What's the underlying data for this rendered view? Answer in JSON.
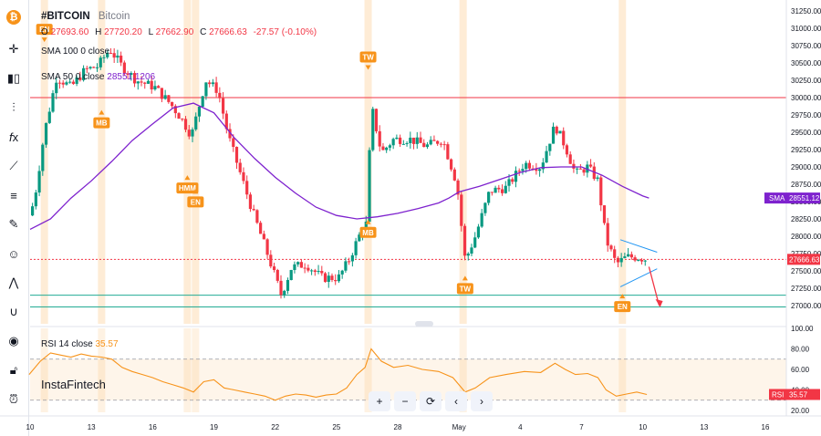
{
  "header": {
    "symbol": "#BITCOIN",
    "name": "Bitcoin",
    "ohlc": {
      "o_label": "O",
      "o": "27693.60",
      "h_label": "H",
      "h": "27720.20",
      "l_label": "L",
      "l": "27662.90",
      "c_label": "C",
      "c": "27666.63",
      "change": "-27.57 (-0.10%)"
    },
    "sma100": "SMA 100 0 close",
    "sma50_label": "SMA 50 0 close",
    "sma50_value": "28551.1206"
  },
  "rsi_legend": {
    "label": "RSI 14 close",
    "value": "35.57"
  },
  "watermark": "InstaFintech",
  "badges": {
    "price": "27666.63",
    "sma_label": "SMA",
    "sma": "28551.12",
    "rsi_label": "RSI",
    "rsi": "35.57"
  },
  "annotations": [
    "EN",
    "MB",
    "HMM",
    "EN",
    "TW",
    "MB",
    "TW",
    "EN"
  ],
  "colors": {
    "up": "#089981",
    "down": "#f23645",
    "sma": "#7e22ce",
    "rsi": "#f7931a",
    "marker": "#f7931a",
    "bitcoin": "#f7931a",
    "resistance": "#f23645",
    "support": "#22ab94",
    "triangle": "#2196f3"
  },
  "toolbar_icons": [
    "bitcoin-icon",
    "crosshair-icon",
    "candles-icon",
    "indicators-icon",
    "formula-icon",
    "trendline-icon",
    "fib-icon",
    "brush-icon",
    "emoji-icon",
    "measure-icon",
    "magnet-icon",
    "eye-icon",
    "lock-icon",
    "alert-icon"
  ],
  "pane_controls": [
    "+",
    "−",
    "⟳",
    "‹",
    "›"
  ],
  "chart_data": {
    "type": "candlestick",
    "price_axis": {
      "ticks": [
        31250,
        31000,
        30750,
        30500,
        30250,
        30000,
        29750,
        29500,
        29250,
        29000,
        28750,
        28500,
        28250,
        28000,
        27750,
        27500,
        27250,
        27000
      ],
      "labels": [
        "31250.00",
        "31000.00",
        "30750.00",
        "30500.00",
        "30250.00",
        "30000.00",
        "29750.00",
        "29500.00",
        "29250.00",
        "29000.00",
        "28750.00",
        "28500.00",
        "28250.00",
        "28000.00",
        "27750.00",
        "27500.00",
        "27250.00",
        "27000.00"
      ]
    },
    "rsi_axis": {
      "ticks": [
        100,
        80,
        60,
        40,
        20
      ],
      "labels": [
        "100.00",
        "80.00",
        "60.00",
        "40.00",
        "20.00"
      ]
    },
    "x_ticks": [
      {
        "t": 10,
        "label": "10"
      },
      {
        "t": 13,
        "label": "13"
      },
      {
        "t": 16,
        "label": "16"
      },
      {
        "t": 19,
        "label": "19"
      },
      {
        "t": 22,
        "label": "22"
      },
      {
        "t": 25,
        "label": "25"
      },
      {
        "t": 28,
        "label": "28"
      },
      {
        "t": 31,
        "label": "May"
      },
      {
        "t": 34,
        "label": "4"
      },
      {
        "t": 37,
        "label": "7"
      },
      {
        "t": 40,
        "label": "10"
      },
      {
        "t": 43,
        "label": "13"
      },
      {
        "t": 46,
        "label": "16"
      }
    ],
    "close_anchors": [
      [
        9.95,
        28300
      ],
      [
        10.2,
        28500
      ],
      [
        10.7,
        29500
      ],
      [
        11.3,
        30300
      ],
      [
        12,
        30150
      ],
      [
        12.7,
        30400
      ],
      [
        13.3,
        30450
      ],
      [
        13.9,
        30700
      ],
      [
        14.5,
        30450
      ],
      [
        15.2,
        30250
      ],
      [
        16.1,
        30150
      ],
      [
        16.9,
        29900
      ],
      [
        17.4,
        29700
      ],
      [
        17.9,
        29450
      ],
      [
        18.6,
        30250
      ],
      [
        19.2,
        30100
      ],
      [
        19.7,
        29450
      ],
      [
        20.3,
        28900
      ],
      [
        20.9,
        28350
      ],
      [
        21.5,
        27850
      ],
      [
        22.3,
        27150
      ],
      [
        22.8,
        27550
      ],
      [
        23.5,
        27600
      ],
      [
        24.3,
        27400
      ],
      [
        25.1,
        27400
      ],
      [
        25.6,
        27650
      ],
      [
        26.1,
        28000
      ],
      [
        26.5,
        28200
      ],
      [
        26.7,
        29900
      ],
      [
        27.2,
        29200
      ],
      [
        27.8,
        29400
      ],
      [
        28.6,
        29400
      ],
      [
        29.4,
        29300
      ],
      [
        30.2,
        29400
      ],
      [
        30.9,
        28750
      ],
      [
        31.3,
        27650
      ],
      [
        31.8,
        28000
      ],
      [
        32.5,
        28650
      ],
      [
        33.3,
        28700
      ],
      [
        34.2,
        29050
      ],
      [
        35.0,
        29000
      ],
      [
        35.7,
        29600
      ],
      [
        36.2,
        29300
      ],
      [
        36.7,
        28900
      ],
      [
        37.3,
        29000
      ],
      [
        37.8,
        28800
      ],
      [
        38.2,
        27950
      ],
      [
        38.7,
        27600
      ],
      [
        39.2,
        27700
      ],
      [
        39.7,
        27700
      ],
      [
        40.2,
        27666
      ]
    ],
    "sma50": [
      [
        10.0,
        28100
      ],
      [
        11,
        28250
      ],
      [
        12,
        28550
      ],
      [
        13,
        28800
      ],
      [
        14,
        29080
      ],
      [
        15,
        29380
      ],
      [
        16,
        29620
      ],
      [
        17,
        29850
      ],
      [
        18,
        29920
      ],
      [
        19,
        29780
      ],
      [
        20,
        29420
      ],
      [
        21,
        29120
      ],
      [
        22,
        28850
      ],
      [
        23,
        28620
      ],
      [
        24,
        28420
      ],
      [
        25,
        28300
      ],
      [
        26,
        28250
      ],
      [
        27,
        28280
      ],
      [
        28,
        28330
      ],
      [
        29,
        28400
      ],
      [
        30,
        28480
      ],
      [
        30.5,
        28550
      ],
      [
        31,
        28640
      ],
      [
        32,
        28720
      ],
      [
        33,
        28820
      ],
      [
        34,
        28920
      ],
      [
        35,
        28990
      ],
      [
        36,
        29000
      ],
      [
        37,
        29000
      ],
      [
        38,
        28880
      ],
      [
        39,
        28720
      ],
      [
        40,
        28580
      ],
      [
        40.3,
        28551
      ]
    ],
    "rsi": [
      [
        9.95,
        55
      ],
      [
        10.5,
        68
      ],
      [
        11,
        76
      ],
      [
        11.5,
        74
      ],
      [
        12,
        72
      ],
      [
        12.5,
        75
      ],
      [
        13,
        73
      ],
      [
        13.5,
        72
      ],
      [
        14,
        70
      ],
      [
        14.5,
        62
      ],
      [
        15,
        58
      ],
      [
        15.5,
        55
      ],
      [
        16,
        52
      ],
      [
        16.5,
        48
      ],
      [
        17,
        45
      ],
      [
        17.5,
        42
      ],
      [
        18,
        38
      ],
      [
        18.5,
        48
      ],
      [
        19,
        50
      ],
      [
        19.5,
        42
      ],
      [
        20,
        40
      ],
      [
        20.5,
        38
      ],
      [
        21,
        36
      ],
      [
        21.5,
        34
      ],
      [
        22,
        30
      ],
      [
        22.5,
        34
      ],
      [
        23,
        36
      ],
      [
        23.5,
        35
      ],
      [
        24,
        33
      ],
      [
        24.5,
        35
      ],
      [
        25,
        36
      ],
      [
        25.5,
        42
      ],
      [
        26,
        55
      ],
      [
        26.4,
        62
      ],
      [
        26.7,
        80
      ],
      [
        27.2,
        68
      ],
      [
        27.8,
        62
      ],
      [
        28.5,
        64
      ],
      [
        29.2,
        60
      ],
      [
        30.0,
        58
      ],
      [
        30.7,
        52
      ],
      [
        31.3,
        38
      ],
      [
        31.8,
        42
      ],
      [
        32.5,
        52
      ],
      [
        33.3,
        55
      ],
      [
        34.2,
        58
      ],
      [
        35.0,
        57
      ],
      [
        35.7,
        66
      ],
      [
        36.2,
        60
      ],
      [
        36.7,
        55
      ],
      [
        37.3,
        56
      ],
      [
        37.8,
        52
      ],
      [
        38.2,
        40
      ],
      [
        38.7,
        34
      ],
      [
        39.2,
        36
      ],
      [
        39.7,
        38
      ],
      [
        40.2,
        35.57
      ]
    ],
    "vertical_markers": [
      10.7,
      13.5,
      17.7,
      18.1,
      26.55,
      31.2,
      39.0
    ],
    "horizontal_levels": {
      "resistance": 30000,
      "support_upper": 27150,
      "support_lower": 26980,
      "last_price": 27666.63
    },
    "rsi_levels": [
      70,
      30
    ],
    "triangle": {
      "upper": [
        [
          38.9,
          27950
        ],
        [
          40.7,
          27770
        ]
      ],
      "lower": [
        [
          38.9,
          27270
        ],
        [
          40.7,
          27530
        ]
      ]
    },
    "projection": [
      [
        40.3,
        27560
      ],
      [
        40.8,
        27000
      ]
    ],
    "annotation_points": [
      {
        "t": 10.7,
        "price": 30880,
        "dir": "down",
        "label": "EN"
      },
      {
        "t": 13.5,
        "price": 29820,
        "dir": "up",
        "label": "MB"
      },
      {
        "t": 17.7,
        "price": 28880,
        "dir": "up",
        "label": "HMM"
      },
      {
        "t": 18.1,
        "price": 28680,
        "dir": "up",
        "label": "EN"
      },
      {
        "t": 26.55,
        "price": 30480,
        "dir": "down",
        "label": "TW"
      },
      {
        "t": 26.55,
        "price": 28240,
        "dir": "up",
        "label": "MB"
      },
      {
        "t": 31.3,
        "price": 27430,
        "dir": "up",
        "label": "TW"
      },
      {
        "t": 39.0,
        "price": 27170,
        "dir": "up",
        "label": "EN"
      }
    ]
  }
}
